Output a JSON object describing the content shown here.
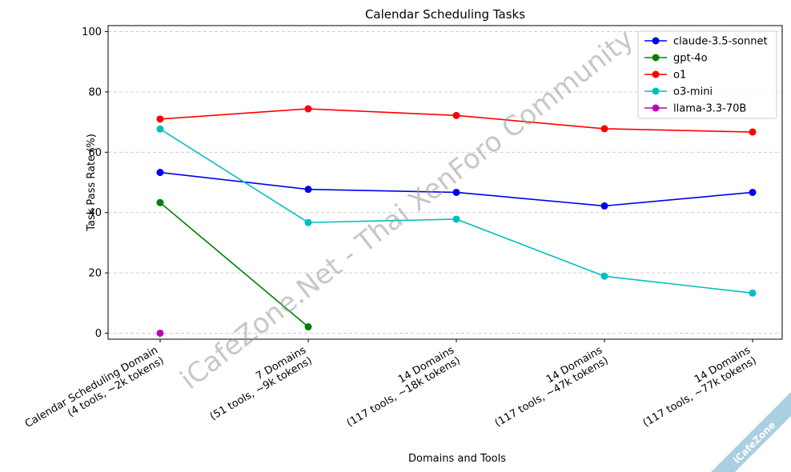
{
  "chart_data": {
    "type": "line",
    "title": "Calendar Scheduling Tasks",
    "xlabel": "Domains and Tools",
    "ylabel": "Task Pass Rate (%)",
    "ylim": [
      -2,
      102
    ],
    "yticks": [
      0,
      20,
      40,
      60,
      80,
      100
    ],
    "grid": "y-dashed",
    "legend_position": "top-right",
    "categories": [
      [
        "Calendar Scheduling Domain",
        "(4 tools, ~2k tokens)"
      ],
      [
        "7 Domains",
        "(51 tools, ~9k tokens)"
      ],
      [
        "14 Domains",
        "(117 tools, ~18k tokens)"
      ],
      [
        "14 Domains",
        "(117 tools, ~47k tokens)"
      ],
      [
        "14 Domains",
        "(117 tools, ~77k tokens)"
      ]
    ],
    "series": [
      {
        "name": "claude-3.5-sonnet",
        "color": "#0000ee",
        "values": [
          53.3,
          47.7,
          46.7,
          42.2,
          46.7
        ]
      },
      {
        "name": "gpt-4o",
        "color": "#008000",
        "values": [
          43.3,
          2.1,
          null,
          null,
          null
        ]
      },
      {
        "name": "o1",
        "color": "#ff0000",
        "values": [
          71.0,
          74.4,
          72.2,
          67.8,
          66.7
        ]
      },
      {
        "name": "o3-mini",
        "color": "#00bfbf",
        "values": [
          67.7,
          36.7,
          37.8,
          18.9,
          13.3
        ]
      },
      {
        "name": "llama-3.3-70B",
        "color": "#bf00bf",
        "values": [
          0.0,
          null,
          null,
          null,
          null
        ]
      }
    ]
  },
  "watermark": {
    "text": "iCafeZone.Net - Thai XenForo Community",
    "corner_badge": "iCafeZone"
  }
}
